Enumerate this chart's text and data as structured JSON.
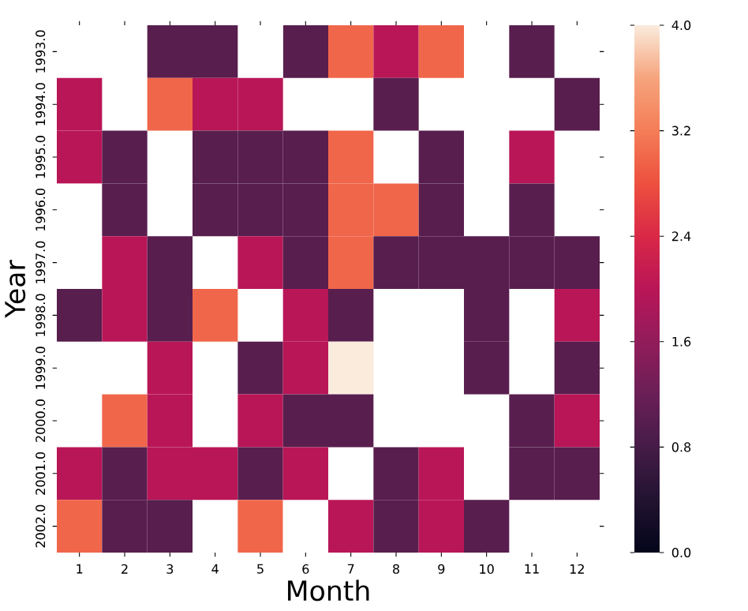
{
  "chart_data": {
    "type": "heatmap",
    "xlabel": "Month",
    "ylabel": "Year",
    "categories": [
      "1",
      "2",
      "3",
      "4",
      "5",
      "6",
      "7",
      "8",
      "9",
      "10",
      "11",
      "12"
    ],
    "y_categories": [
      "1993.0",
      "1994.0",
      "1995.0",
      "1996.0",
      "1997.0",
      "1998.0",
      "1999.0",
      "2000.0",
      "2001.0",
      "2002.0"
    ],
    "cells": [
      [
        null,
        null,
        1,
        1,
        null,
        1,
        3,
        2,
        3,
        null,
        1,
        null
      ],
      [
        2,
        null,
        3,
        2,
        2,
        null,
        null,
        1,
        null,
        null,
        null,
        1
      ],
      [
        2,
        1,
        null,
        1,
        1,
        1,
        3,
        null,
        1,
        null,
        2,
        null
      ],
      [
        null,
        1,
        null,
        1,
        1,
        1,
        3,
        3,
        1,
        null,
        1,
        null
      ],
      [
        null,
        2,
        1,
        null,
        2,
        1,
        3,
        1,
        1,
        1,
        1,
        1
      ],
      [
        1,
        2,
        1,
        3,
        null,
        2,
        1,
        null,
        null,
        1,
        null,
        2
      ],
      [
        null,
        null,
        2,
        null,
        1,
        2,
        4,
        null,
        null,
        1,
        null,
        1
      ],
      [
        null,
        3,
        2,
        null,
        2,
        1,
        1,
        null,
        null,
        null,
        1,
        2
      ],
      [
        2,
        1,
        2,
        2,
        1,
        2,
        null,
        1,
        2,
        null,
        1,
        1
      ],
      [
        3,
        1,
        1,
        null,
        3,
        null,
        2,
        1,
        2,
        1,
        null,
        null
      ]
    ],
    "clim": [
      0,
      4.0
    ],
    "cticks": [
      {
        "value": 0,
        "label": "0.0"
      },
      {
        "value": 0.8,
        "label": "0.8"
      },
      {
        "value": 1.6,
        "label": "1.6"
      },
      {
        "value": 2.4,
        "label": "2.4"
      },
      {
        "value": 3.2,
        "label": "3.2"
      },
      {
        "value": 4.0,
        "label": "4.0"
      }
    ]
  }
}
